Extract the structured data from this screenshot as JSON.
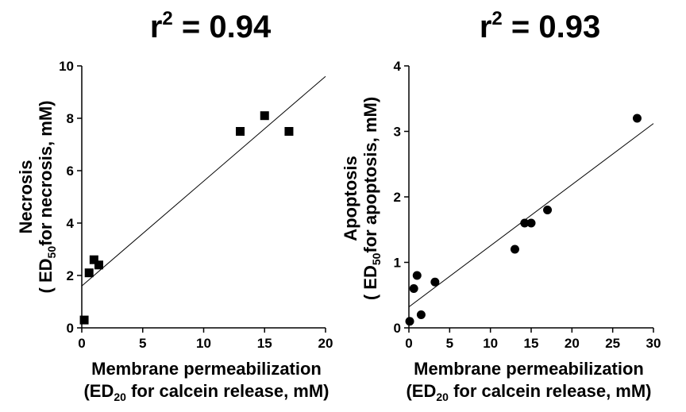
{
  "chart_data": [
    {
      "type": "scatter",
      "marker": "square",
      "title": {
        "main": "r",
        "sup": "2",
        "rest": " = 0.94"
      },
      "xlabel": {
        "line1": "Membrane permeabilization",
        "line2_pre": "(ED",
        "line2_sub": "20",
        "line2_post": " for calcein release, mM)"
      },
      "ylabel": {
        "line1": "Necrosis",
        "line2_pre": "( ED",
        "line2_sub": "50",
        "line2_post": "for necrosis, mM)"
      },
      "xlim": [
        0,
        20
      ],
      "ylim": [
        0,
        10
      ],
      "xticks": [
        0,
        5,
        10,
        15,
        20
      ],
      "yticks": [
        0,
        2,
        4,
        6,
        8,
        10
      ],
      "points": [
        {
          "x": 0.2,
          "y": 0.3
        },
        {
          "x": 0.6,
          "y": 2.1
        },
        {
          "x": 1.0,
          "y": 2.6
        },
        {
          "x": 1.4,
          "y": 2.4
        },
        {
          "x": 13,
          "y": 7.5
        },
        {
          "x": 15,
          "y": 8.1
        },
        {
          "x": 17,
          "y": 7.5
        }
      ],
      "fit": {
        "x": [
          0,
          20
        ],
        "y": [
          1.6,
          9.6
        ]
      },
      "color": "#000000"
    },
    {
      "type": "scatter",
      "marker": "circle",
      "title": {
        "main": "r",
        "sup": "2",
        "rest": " = 0.93"
      },
      "xlabel": {
        "line1": "Membrane permeabilization",
        "line2_pre": "(ED",
        "line2_sub": "20",
        "line2_post": " for calcein release, mM)"
      },
      "ylabel": {
        "line1": "Apoptosis",
        "line2_pre": "( ED",
        "line2_sub": "50",
        "line2_post": "for apoptosis, mM)"
      },
      "xlim": [
        0,
        30
      ],
      "ylim": [
        0,
        4
      ],
      "xticks": [
        0,
        5,
        10,
        15,
        20,
        25,
        30
      ],
      "yticks": [
        0,
        1,
        2,
        3,
        4
      ],
      "points": [
        {
          "x": 0.1,
          "y": 0.1
        },
        {
          "x": 0.6,
          "y": 0.6
        },
        {
          "x": 1.0,
          "y": 0.8
        },
        {
          "x": 1.5,
          "y": 0.2
        },
        {
          "x": 3.2,
          "y": 0.7
        },
        {
          "x": 13,
          "y": 1.2
        },
        {
          "x": 14.2,
          "y": 1.6
        },
        {
          "x": 15,
          "y": 1.6
        },
        {
          "x": 17,
          "y": 1.8
        },
        {
          "x": 28,
          "y": 3.2
        }
      ],
      "fit": {
        "x": [
          0,
          30
        ],
        "y": [
          0.32,
          3.12
        ]
      },
      "color": "#000000"
    }
  ]
}
